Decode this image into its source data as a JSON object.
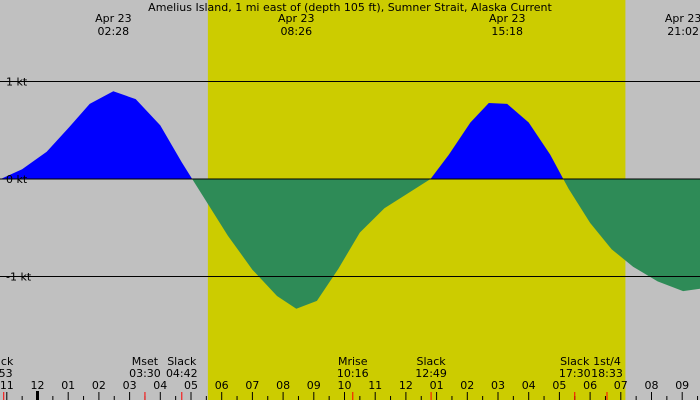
{
  "title": "Amelius Island, 1 mi east of (depth 105 ft), Sumner Strait, Alaska Current",
  "colors": {
    "background": "#c0c0c0",
    "daylight": "#cccc00",
    "flood": "#0000ff",
    "ebb": "#2e8b57",
    "tick_red": "#ff0000"
  },
  "chart_data": {
    "type": "area",
    "title": "Amelius Island, 1 mi east of (depth 105 ft), Sumner Strait, Alaska Current",
    "ylabel": "",
    "unit": "kt",
    "xlim": [
      -1.2,
      21.7
    ],
    "ylim": [
      -1.7,
      1.0
    ],
    "grid": true,
    "y_ticks": [
      {
        "value": 1,
        "label": "1 kt"
      },
      {
        "value": 0,
        "label": "0 kt"
      },
      {
        "value": -1,
        "label": "-1 kt"
      }
    ],
    "x_hour_ticks": [
      "11",
      "12",
      "01",
      "02",
      "03",
      "04",
      "05",
      "06",
      "07",
      "08",
      "09",
      "10",
      "11",
      "12",
      "01",
      "02",
      "03",
      "04",
      "05",
      "06",
      "07",
      "08",
      "09"
    ],
    "extrema": [
      {
        "date": "Apr 23",
        "time": "02:28",
        "hour": 2.47,
        "value": 0.9
      },
      {
        "date": "Apr 23",
        "time": "08:26",
        "hour": 8.43,
        "value": -1.33
      },
      {
        "date": "Apr 23",
        "time": "15:18",
        "hour": 15.3,
        "value": 0.78
      },
      {
        "date": "Apr 23",
        "time": "21:02",
        "hour": 21.03,
        "value": -1.15
      }
    ],
    "series": [
      {
        "x": [
          -1.2,
          -0.5,
          0.3,
          1.0,
          1.7,
          2.47,
          3.2,
          4.0,
          4.7,
          5.4,
          6.2,
          7.0,
          7.8,
          8.43,
          9.1,
          9.8,
          10.5,
          11.3,
          12.0,
          12.8,
          13.4,
          14.1,
          14.7,
          15.3,
          16.0,
          16.7,
          17.3,
          18.0,
          18.7,
          19.4,
          20.2,
          21.03,
          21.7
        ],
        "y": [
          0.0,
          0.1,
          0.28,
          0.52,
          0.77,
          0.9,
          0.82,
          0.55,
          0.17,
          -0.18,
          -0.58,
          -0.93,
          -1.2,
          -1.33,
          -1.25,
          -0.92,
          -0.55,
          -0.3,
          -0.16,
          0.0,
          0.25,
          0.58,
          0.78,
          0.77,
          0.58,
          0.25,
          -0.1,
          -0.45,
          -0.72,
          -0.9,
          -1.05,
          -1.15,
          -1.12
        ]
      }
    ]
  },
  "daylight": {
    "start_hour": 5.55,
    "end_hour": 19.15
  },
  "events": [
    {
      "label": "ack",
      "time": ":53",
      "hour": -1.1
    },
    {
      "label": "Mset",
      "time": "03:30",
      "hour": 3.5
    },
    {
      "label": "Slack",
      "time": "04:42",
      "hour": 4.7
    },
    {
      "label": "Mrise",
      "time": "10:16",
      "hour": 10.27
    },
    {
      "label": "Slack",
      "time": "12:49",
      "hour": 12.82
    },
    {
      "label": "Slack",
      "time": "17:30",
      "hour": 17.5
    },
    {
      "label": "1st/4",
      "time": "18:33",
      "hour": 18.55
    }
  ],
  "red_marks": [
    -1.1,
    3.5,
    4.7,
    10.27,
    12.82,
    17.5,
    18.55
  ],
  "now_marker": 0.0
}
